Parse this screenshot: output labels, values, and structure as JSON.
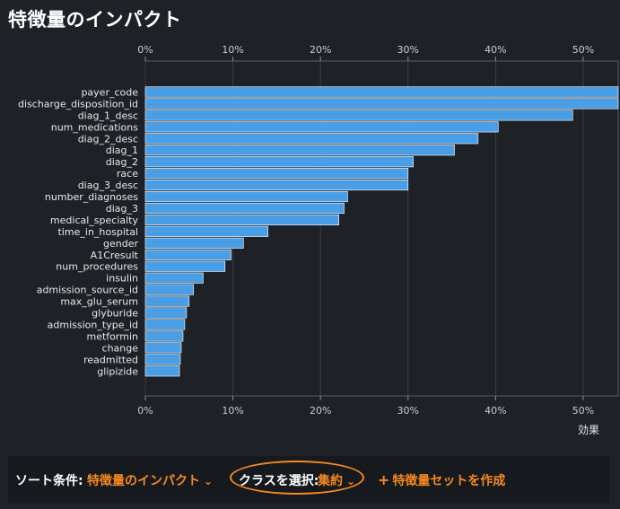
{
  "page": {
    "title": "特徴量のインパクト"
  },
  "chart_data": {
    "type": "bar",
    "orientation": "horizontal",
    "title": "特徴量のインパクト",
    "xlabel": "効果",
    "ylabel": "",
    "xlim": [
      0,
      54
    ],
    "xticks": [
      0,
      10,
      20,
      30,
      40,
      50
    ],
    "tick_suffix": "%",
    "grid": true,
    "bar_color": "#4a9ee6",
    "categories": [
      "payer_code",
      "discharge_disposition_id",
      "diag_1_desc",
      "num_medications",
      "diag_2_desc",
      "diag_1",
      "diag_2",
      "race",
      "diag_3_desc",
      "number_diagnoses",
      "diag_3",
      "medical_specialty",
      "time_in_hospital",
      "gender",
      "A1Cresult",
      "num_procedures",
      "insulin",
      "admission_source_id",
      "max_glu_serum",
      "glyburide",
      "admission_type_id",
      "metformin",
      "change",
      "readmitted",
      "glipizide"
    ],
    "values": [
      54,
      54,
      48.8,
      40.3,
      38,
      35.3,
      30.6,
      30,
      30,
      23.1,
      22.7,
      22.1,
      14,
      11.2,
      9.8,
      9.1,
      6.6,
      5.5,
      5,
      4.7,
      4.5,
      4.3,
      4.1,
      4,
      3.9
    ]
  },
  "footer": {
    "sort_label": "ソート条件:",
    "sort_value": "特徴量のインパクト",
    "class_label": "クラスを選択:",
    "class_value": "集約",
    "create_label": "特徴量セットを作成",
    "accent_color": "#f5891f"
  }
}
